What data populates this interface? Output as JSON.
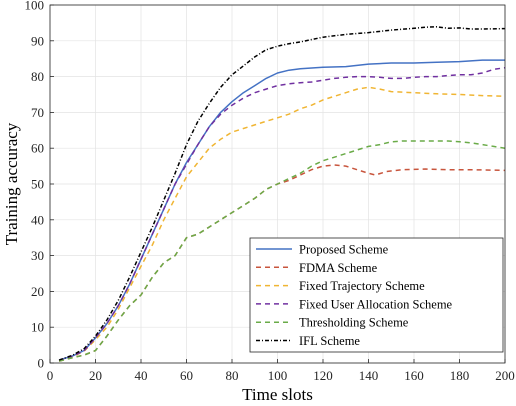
{
  "chart_data": {
    "type": "line",
    "title": "",
    "xlabel": "Time slots",
    "ylabel": "Training accuracy",
    "xlim": [
      0,
      200
    ],
    "ylim": [
      0,
      100
    ],
    "xticks": [
      0,
      20,
      40,
      60,
      80,
      100,
      120,
      140,
      160,
      180,
      200
    ],
    "yticks": [
      0,
      10,
      20,
      30,
      40,
      50,
      60,
      70,
      80,
      90,
      100
    ],
    "grid": true,
    "legend_position": "bottom-right",
    "series": [
      {
        "name": "Proposed Scheme",
        "color": "#4472C4",
        "dash": "solid",
        "points": [
          [
            4,
            0.8
          ],
          [
            10,
            2
          ],
          [
            15,
            3.5
          ],
          [
            20,
            7
          ],
          [
            25,
            11
          ],
          [
            30,
            16
          ],
          [
            35,
            22
          ],
          [
            40,
            29
          ],
          [
            45,
            36
          ],
          [
            50,
            43
          ],
          [
            55,
            50
          ],
          [
            60,
            56
          ],
          [
            65,
            61
          ],
          [
            70,
            66
          ],
          [
            75,
            70
          ],
          [
            80,
            73
          ],
          [
            85,
            75.5
          ],
          [
            90,
            77.5
          ],
          [
            95,
            79.5
          ],
          [
            100,
            81
          ],
          [
            105,
            81.8
          ],
          [
            110,
            82.2
          ],
          [
            120,
            82.6
          ],
          [
            130,
            82.8
          ],
          [
            140,
            83.5
          ],
          [
            150,
            83.8
          ],
          [
            160,
            83.8
          ],
          [
            170,
            84
          ],
          [
            180,
            84.2
          ],
          [
            190,
            84.6
          ],
          [
            200,
            84.6
          ]
        ]
      },
      {
        "name": "FDMA Scheme",
        "color": "#C8553D",
        "dash": "5,4",
        "points": [
          [
            4,
            0.5
          ],
          [
            10,
            1.5
          ],
          [
            15,
            2.2
          ],
          [
            20,
            3.5
          ],
          [
            25,
            7.5
          ],
          [
            30,
            12
          ],
          [
            35,
            16
          ],
          [
            40,
            19
          ],
          [
            45,
            24
          ],
          [
            50,
            28
          ],
          [
            55,
            30
          ],
          [
            60,
            35
          ],
          [
            65,
            36
          ],
          [
            70,
            38
          ],
          [
            75,
            40
          ],
          [
            80,
            42
          ],
          [
            85,
            44
          ],
          [
            90,
            46
          ],
          [
            95,
            48.5
          ],
          [
            100,
            50
          ],
          [
            105,
            51
          ],
          [
            110,
            52.5
          ],
          [
            115,
            54
          ],
          [
            120,
            55
          ],
          [
            125,
            55.3
          ],
          [
            130,
            55
          ],
          [
            135,
            54
          ],
          [
            140,
            53
          ],
          [
            143,
            52.5
          ],
          [
            148,
            53.5
          ],
          [
            155,
            54
          ],
          [
            165,
            54.2
          ],
          [
            175,
            54
          ],
          [
            185,
            54
          ],
          [
            200,
            53.8
          ]
        ]
      },
      {
        "name": "Fixed Trajectory Scheme",
        "color": "#F0B533",
        "dash": "5,4",
        "points": [
          [
            4,
            0.6
          ],
          [
            10,
            1.8
          ],
          [
            15,
            3.3
          ],
          [
            20,
            6.5
          ],
          [
            25,
            10
          ],
          [
            30,
            15
          ],
          [
            35,
            21
          ],
          [
            40,
            27
          ],
          [
            45,
            33
          ],
          [
            50,
            40
          ],
          [
            55,
            46
          ],
          [
            60,
            52
          ],
          [
            65,
            56
          ],
          [
            70,
            60
          ],
          [
            75,
            62.5
          ],
          [
            80,
            64.5
          ],
          [
            85,
            65.5
          ],
          [
            90,
            66.5
          ],
          [
            95,
            67.5
          ],
          [
            100,
            68.5
          ],
          [
            105,
            69.5
          ],
          [
            110,
            71
          ],
          [
            115,
            72
          ],
          [
            120,
            73.5
          ],
          [
            125,
            74.5
          ],
          [
            130,
            75.5
          ],
          [
            135,
            76.5
          ],
          [
            140,
            77
          ],
          [
            145,
            76.5
          ],
          [
            150,
            75.8
          ],
          [
            160,
            75.5
          ],
          [
            170,
            75.2
          ],
          [
            180,
            75
          ],
          [
            190,
            74.7
          ],
          [
            200,
            74.5
          ]
        ]
      },
      {
        "name": "Fixed User Allocation Scheme",
        "color": "#7030A0",
        "dash": "5,4",
        "points": [
          [
            4,
            0.7
          ],
          [
            10,
            1.9
          ],
          [
            15,
            3.4
          ],
          [
            20,
            7
          ],
          [
            25,
            11
          ],
          [
            30,
            16
          ],
          [
            35,
            22
          ],
          [
            40,
            29
          ],
          [
            45,
            36
          ],
          [
            50,
            43
          ],
          [
            55,
            50
          ],
          [
            60,
            55.5
          ],
          [
            65,
            61
          ],
          [
            70,
            66
          ],
          [
            75,
            69.5
          ],
          [
            80,
            72
          ],
          [
            85,
            74
          ],
          [
            90,
            75.5
          ],
          [
            95,
            76.5
          ],
          [
            100,
            77.5
          ],
          [
            105,
            78
          ],
          [
            110,
            78.3
          ],
          [
            115,
            78.5
          ],
          [
            120,
            79
          ],
          [
            125,
            79.5
          ],
          [
            130,
            79.8
          ],
          [
            135,
            80
          ],
          [
            140,
            80
          ],
          [
            145,
            79.8
          ],
          [
            150,
            79.5
          ],
          [
            155,
            79.5
          ],
          [
            160,
            79.8
          ],
          [
            165,
            80
          ],
          [
            170,
            80
          ],
          [
            175,
            80.3
          ],
          [
            180,
            80.5
          ],
          [
            185,
            80.5
          ],
          [
            190,
            81
          ],
          [
            195,
            82
          ],
          [
            200,
            82.5
          ]
        ]
      },
      {
        "name": "Thresholding Scheme",
        "color": "#6AAB48",
        "dash": "5,4",
        "points": [
          [
            4,
            0.5
          ],
          [
            10,
            1.5
          ],
          [
            15,
            2.2
          ],
          [
            20,
            3.5
          ],
          [
            25,
            7.5
          ],
          [
            30,
            12
          ],
          [
            35,
            16
          ],
          [
            40,
            19
          ],
          [
            45,
            24
          ],
          [
            50,
            28
          ],
          [
            55,
            30
          ],
          [
            60,
            35
          ],
          [
            65,
            36
          ],
          [
            70,
            38
          ],
          [
            75,
            40
          ],
          [
            80,
            42
          ],
          [
            85,
            44
          ],
          [
            90,
            46
          ],
          [
            95,
            48.5
          ],
          [
            100,
            50
          ],
          [
            105,
            51.5
          ],
          [
            110,
            53
          ],
          [
            115,
            55
          ],
          [
            120,
            56.5
          ],
          [
            125,
            57.5
          ],
          [
            130,
            58.5
          ],
          [
            135,
            59.5
          ],
          [
            140,
            60.5
          ],
          [
            145,
            61
          ],
          [
            150,
            61.8
          ],
          [
            155,
            62
          ],
          [
            160,
            62
          ],
          [
            165,
            62
          ],
          [
            170,
            62
          ],
          [
            175,
            62
          ],
          [
            180,
            61.8
          ],
          [
            185,
            61.5
          ],
          [
            190,
            61
          ],
          [
            195,
            60.5
          ],
          [
            200,
            60
          ]
        ]
      },
      {
        "name": "IFL Scheme",
        "color": "#000000",
        "dash": "4,2,1,2",
        "points": [
          [
            4,
            0.8
          ],
          [
            10,
            2.2
          ],
          [
            15,
            4
          ],
          [
            20,
            7.5
          ],
          [
            25,
            12
          ],
          [
            30,
            17.5
          ],
          [
            35,
            24
          ],
          [
            40,
            31
          ],
          [
            45,
            38
          ],
          [
            50,
            45.5
          ],
          [
            55,
            53
          ],
          [
            60,
            61
          ],
          [
            65,
            67.5
          ],
          [
            70,
            72.5
          ],
          [
            75,
            77
          ],
          [
            80,
            80.5
          ],
          [
            85,
            83
          ],
          [
            90,
            85.5
          ],
          [
            95,
            87.5
          ],
          [
            100,
            88.5
          ],
          [
            105,
            89.2
          ],
          [
            110,
            89.7
          ],
          [
            120,
            91
          ],
          [
            130,
            91.8
          ],
          [
            140,
            92.3
          ],
          [
            150,
            93
          ],
          [
            160,
            93.5
          ],
          [
            165,
            93.8
          ],
          [
            170,
            93.9
          ],
          [
            175,
            93.5
          ],
          [
            180,
            93.6
          ],
          [
            185,
            93.3
          ],
          [
            190,
            93.3
          ],
          [
            200,
            93.4
          ]
        ]
      }
    ]
  }
}
